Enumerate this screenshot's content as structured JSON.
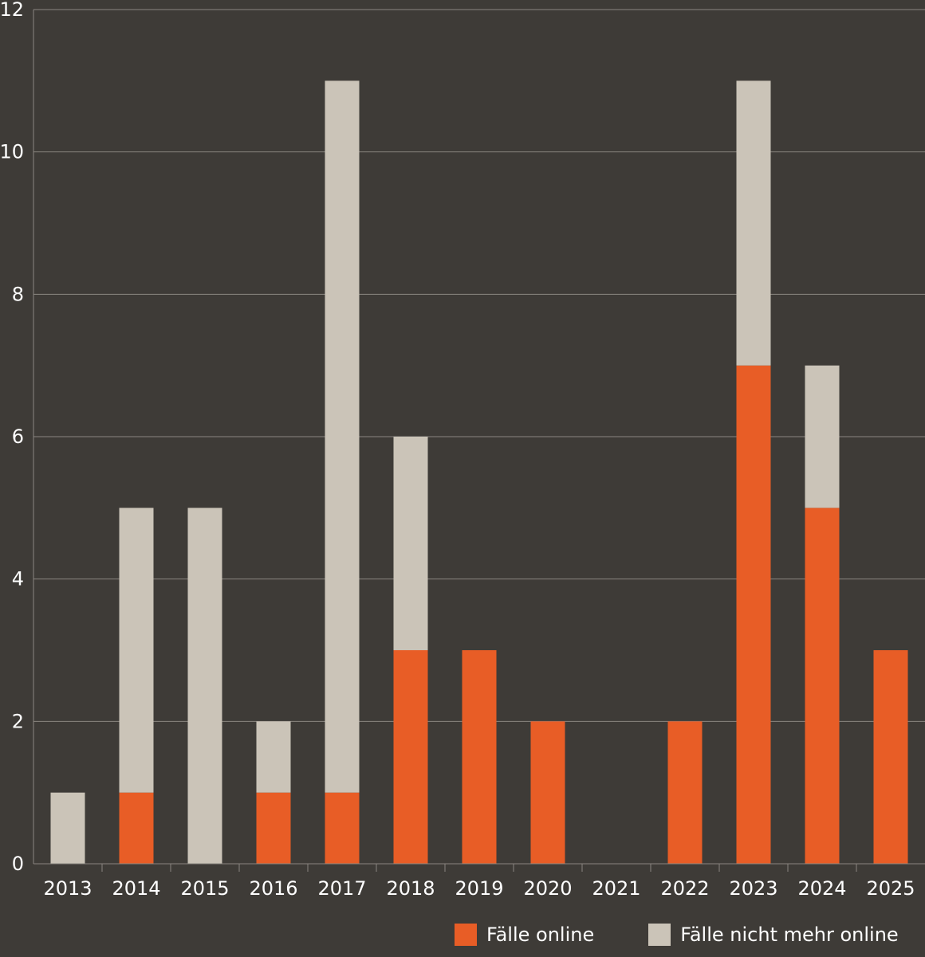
{
  "chart_data": {
    "type": "bar",
    "stacked": true,
    "categories": [
      "2013",
      "2014",
      "2015",
      "2016",
      "2017",
      "2018",
      "2019",
      "2020",
      "2021",
      "2022",
      "2023",
      "2024",
      "2025"
    ],
    "series": [
      {
        "name": "Fälle online",
        "color": "#e85d26",
        "values": [
          0,
          1,
          0,
          1,
          1,
          3,
          3,
          2,
          0,
          2,
          7,
          5,
          3
        ]
      },
      {
        "name": "Fälle nicht mehr online",
        "color": "#cbc4b8",
        "values": [
          1,
          4,
          5,
          1,
          10,
          3,
          0,
          0,
          0,
          0,
          4,
          2,
          0
        ]
      }
    ],
    "ylim": [
      0,
      12
    ],
    "yticks": [
      "0",
      "2",
      "4",
      "6",
      "8",
      "10",
      "12"
    ],
    "grid": true,
    "gridColor": "#8a8680",
    "legend_position": "bottom-right"
  }
}
